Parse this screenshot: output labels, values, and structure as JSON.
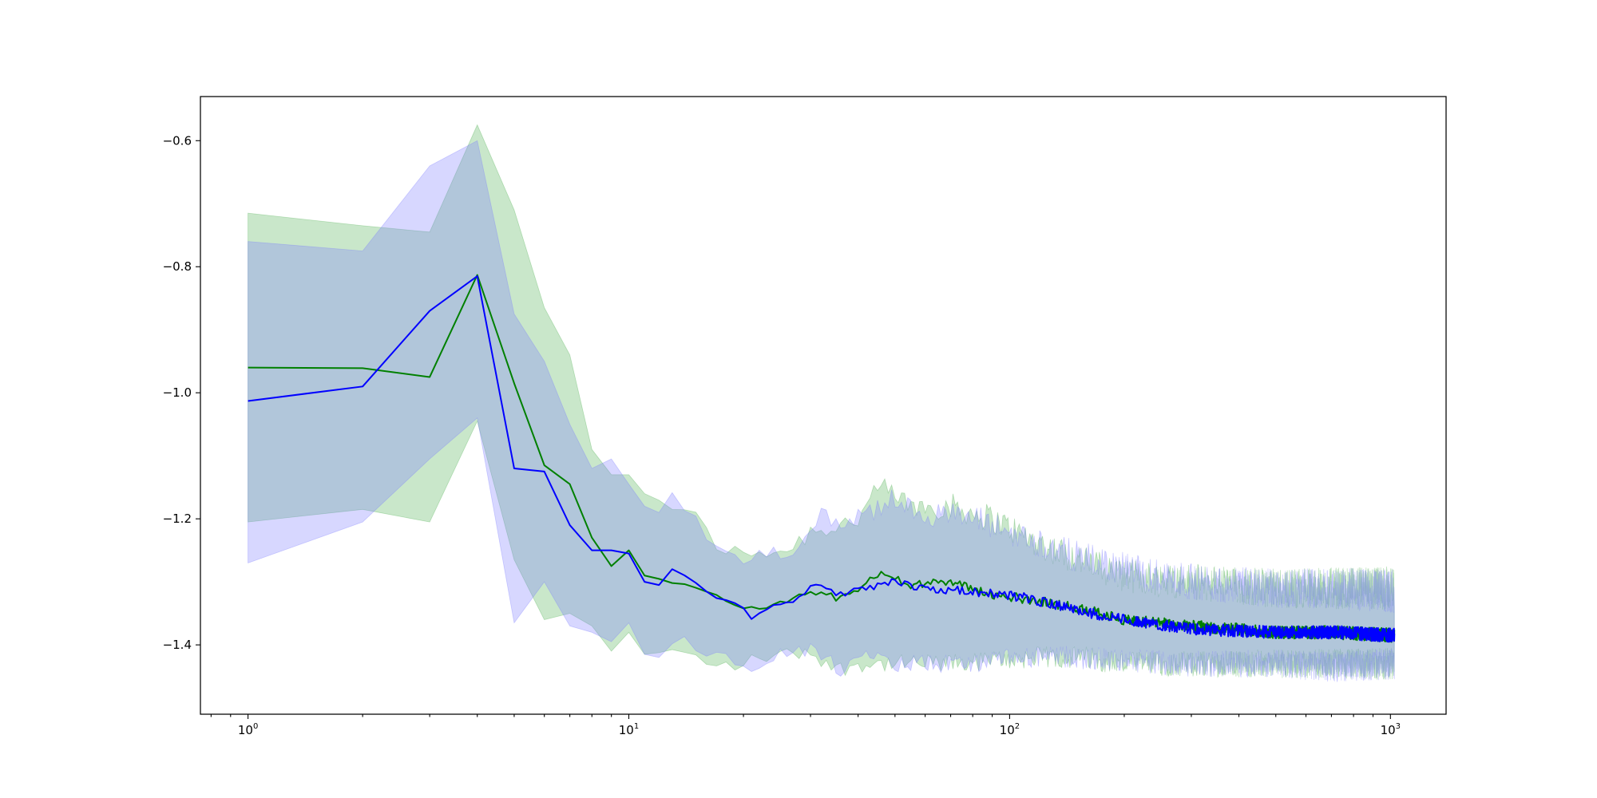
{
  "chart_data": {
    "type": "line",
    "title": "",
    "xlabel": "",
    "ylabel": "",
    "xscale": "log",
    "xlim": [
      0.75,
      1400
    ],
    "ylim": [
      -1.51,
      -0.53
    ],
    "grid": false,
    "legend": "none",
    "x_ticks": [
      {
        "value": 1,
        "base": "10",
        "exp": "0"
      },
      {
        "value": 10,
        "base": "10",
        "exp": "1"
      },
      {
        "value": 100,
        "base": "10",
        "exp": "2"
      },
      {
        "value": 1000,
        "base": "10",
        "exp": "3"
      }
    ],
    "y_ticks": [
      {
        "value": -0.6,
        "label": "−0.6"
      },
      {
        "value": -0.8,
        "label": "−0.8"
      },
      {
        "value": -1.0,
        "label": "−1.0"
      },
      {
        "value": -1.2,
        "label": "−1.2"
      },
      {
        "value": -1.4,
        "label": "−1.4"
      }
    ],
    "series": [
      {
        "color": "#008000",
        "band_color": "#4caf50",
        "points": [
          [
            1,
            -0.96,
            -0.715,
            -1.205
          ],
          [
            2,
            -0.961,
            -0.735,
            -1.185
          ],
          [
            3,
            -0.975,
            -0.745,
            -1.205
          ],
          [
            4,
            -0.813,
            -0.575,
            -1.045
          ],
          [
            5,
            -0.985,
            -0.71,
            -1.265
          ],
          [
            6,
            -1.115,
            -0.865,
            -1.36
          ],
          [
            7,
            -1.145,
            -0.94,
            -1.35
          ],
          [
            8,
            -1.23,
            -1.09,
            -1.37
          ],
          [
            9,
            -1.275,
            -1.13,
            -1.41
          ],
          [
            10,
            -1.25,
            -1.13,
            -1.38
          ],
          [
            11,
            -1.29,
            -1.16,
            -1.415
          ],
          [
            13,
            -1.3,
            -1.18,
            -1.41
          ],
          [
            15,
            -1.31,
            -1.2,
            -1.42
          ],
          [
            17,
            -1.325,
            -1.24,
            -1.435
          ],
          [
            20,
            -1.34,
            -1.26,
            -1.43
          ],
          [
            22,
            -1.345,
            -1.25,
            -1.42
          ],
          [
            26,
            -1.33,
            -1.25,
            -1.415
          ],
          [
            30,
            -1.315,
            -1.22,
            -1.41
          ],
          [
            35,
            -1.325,
            -1.21,
            -1.44
          ],
          [
            40,
            -1.31,
            -1.2,
            -1.43
          ],
          [
            46,
            -1.285,
            -1.15,
            -1.43
          ],
          [
            55,
            -1.305,
            -1.18,
            -1.43
          ],
          [
            70,
            -1.3,
            -1.18,
            -1.43
          ],
          [
            90,
            -1.32,
            -1.2,
            -1.425
          ],
          [
            120,
            -1.33,
            -1.24,
            -1.42
          ],
          [
            160,
            -1.345,
            -1.27,
            -1.42
          ],
          [
            200,
            -1.36,
            -1.29,
            -1.43
          ],
          [
            300,
            -1.37,
            -1.3,
            -1.43
          ],
          [
            500,
            -1.38,
            -1.31,
            -1.43
          ],
          [
            700,
            -1.38,
            -1.31,
            -1.43
          ],
          [
            1024,
            -1.385,
            -1.31,
            -1.43
          ]
        ]
      },
      {
        "color": "#0000ff",
        "band_color": "#7b7bff",
        "points": [
          [
            1,
            -1.013,
            -0.76,
            -1.27
          ],
          [
            2,
            -0.99,
            -0.775,
            -1.205
          ],
          [
            3,
            -0.87,
            -0.64,
            -1.105
          ],
          [
            4,
            -0.815,
            -0.6,
            -1.04
          ],
          [
            5,
            -1.12,
            -0.875,
            -1.365
          ],
          [
            6,
            -1.125,
            -0.95,
            -1.3
          ],
          [
            7,
            -1.21,
            -1.05,
            -1.37
          ],
          [
            8,
            -1.25,
            -1.12,
            -1.38
          ],
          [
            9,
            -1.25,
            -1.105,
            -1.395
          ],
          [
            10,
            -1.255,
            -1.145,
            -1.365
          ],
          [
            11,
            -1.3,
            -1.18,
            -1.415
          ],
          [
            12,
            -1.305,
            -1.19,
            -1.42
          ],
          [
            13,
            -1.28,
            -1.17,
            -1.39
          ],
          [
            15,
            -1.3,
            -1.2,
            -1.4
          ],
          [
            17,
            -1.33,
            -1.24,
            -1.42
          ],
          [
            19,
            -1.335,
            -1.25,
            -1.425
          ],
          [
            21,
            -1.355,
            -1.27,
            -1.435
          ],
          [
            23,
            -1.34,
            -1.255,
            -1.42
          ],
          [
            27,
            -1.33,
            -1.25,
            -1.41
          ],
          [
            31,
            -1.305,
            -1.2,
            -1.41
          ],
          [
            36,
            -1.32,
            -1.2,
            -1.44
          ],
          [
            42,
            -1.31,
            -1.2,
            -1.42
          ],
          [
            48,
            -1.3,
            -1.17,
            -1.43
          ],
          [
            60,
            -1.31,
            -1.19,
            -1.43
          ],
          [
            80,
            -1.315,
            -1.2,
            -1.43
          ],
          [
            110,
            -1.325,
            -1.23,
            -1.42
          ],
          [
            150,
            -1.345,
            -1.26,
            -1.42
          ],
          [
            200,
            -1.36,
            -1.28,
            -1.425
          ],
          [
            300,
            -1.375,
            -1.3,
            -1.43
          ],
          [
            500,
            -1.38,
            -1.31,
            -1.43
          ],
          [
            700,
            -1.38,
            -1.31,
            -1.435
          ],
          [
            1024,
            -1.385,
            -1.315,
            -1.43
          ]
        ]
      }
    ]
  }
}
